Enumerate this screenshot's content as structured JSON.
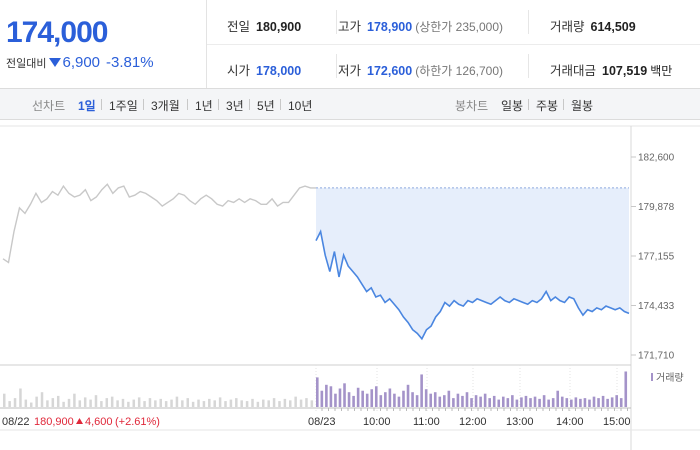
{
  "quote": {
    "price": "174,000",
    "change_label": "전일대비",
    "change": "6,900",
    "change_pct": "-3.81%",
    "stats": [
      {
        "label": "전일",
        "value": "180,900",
        "sub": ""
      },
      {
        "label": "고가",
        "value": "178,900",
        "sub": "(상한가 235,000)"
      },
      {
        "label": "거래량",
        "value": "614,509",
        "sub": ""
      },
      {
        "label": "시가",
        "value": "178,000",
        "sub": ""
      },
      {
        "label": "저가",
        "value": "172,600",
        "sub": "(하한가 126,700)"
      },
      {
        "label": "거래대금",
        "value": "107,519",
        "sub": "백만"
      }
    ]
  },
  "tabs": {
    "line_label": "선차트",
    "line": [
      "1일",
      "1주일",
      "3개월",
      "1년",
      "3년",
      "5년",
      "10년"
    ],
    "active": "1일",
    "candle_label": "봉차트",
    "candle": [
      "일봉",
      "주봉",
      "월봉"
    ]
  },
  "colors": {
    "accent": "#2b5fd9",
    "up": "#e0283a",
    "line_today": "#4a86e0",
    "fill_today": "#e6eefb",
    "line_prev": "#c8c8c8",
    "volume": "#a493c9"
  },
  "chart_data": {
    "type": "line",
    "ylim": [
      171710,
      182600
    ],
    "y_ticks": [
      "182,600",
      "179,878",
      "177,155",
      "174,433",
      "171,710"
    ],
    "y_tick_values": [
      182600,
      179878,
      177155,
      174433,
      171710
    ],
    "x_ticks": [
      "08/23",
      "10:00",
      "11:00",
      "12:00",
      "13:00",
      "14:00",
      "15:00"
    ],
    "prev_day": {
      "date": "08/22",
      "close": "180,900",
      "change": "4,600",
      "change_pct": "(+2.61%)",
      "values": [
        177000,
        176800,
        178500,
        179800,
        179500,
        180000,
        180600,
        180100,
        180300,
        180700,
        180500,
        181000,
        180600,
        180400,
        180500,
        180800,
        180200,
        180400,
        180800,
        181100,
        180600,
        180900,
        181000,
        180400,
        180500,
        180700,
        180600,
        180400,
        180200,
        179900,
        180100,
        180300,
        180600,
        180500,
        180200,
        180000,
        180300,
        180500,
        180300,
        180000,
        179900,
        180200,
        180100,
        180300,
        180100,
        180300,
        180200,
        180000,
        180000,
        180300,
        179900,
        180100,
        180100,
        180500,
        180900,
        181000,
        180900,
        180900
      ]
    },
    "today": {
      "reference": 180900,
      "values": [
        178000,
        178500,
        177200,
        176300,
        177400,
        176000,
        177200,
        176600,
        176300,
        176000,
        175600,
        175200,
        175400,
        174900,
        175000,
        174600,
        174800,
        174500,
        174200,
        173800,
        173500,
        173100,
        172900,
        172600,
        173100,
        173300,
        173800,
        174100,
        174600,
        174400,
        174700,
        174500,
        174400,
        174700,
        174600,
        174800,
        174700,
        174600,
        174500,
        174700,
        174900,
        174700,
        174600,
        174800,
        174700,
        174600,
        174500,
        174700,
        174600,
        174800,
        175200,
        174700,
        174900,
        174700,
        174600,
        174900,
        174800,
        174300,
        173900,
        174200,
        174100,
        174300,
        174200,
        174400,
        174300,
        174200,
        174300,
        174100,
        174000
      ]
    },
    "volume_label": "거래량",
    "prev_volume": [
      18,
      8,
      12,
      25,
      10,
      6,
      14,
      20,
      9,
      12,
      15,
      7,
      11,
      18,
      9,
      13,
      10,
      16,
      8,
      12,
      14,
      9,
      11,
      7,
      10,
      13,
      8,
      12,
      9,
      11,
      8,
      10,
      14,
      9,
      12,
      7,
      10,
      8,
      11,
      9,
      13,
      8,
      10,
      12,
      9,
      8,
      11,
      7,
      10,
      9,
      12,
      8,
      11,
      9,
      14,
      10,
      12,
      9
    ],
    "today_volume": [
      40,
      22,
      30,
      28,
      18,
      25,
      32,
      20,
      15,
      26,
      22,
      18,
      24,
      28,
      16,
      20,
      25,
      18,
      14,
      22,
      30,
      20,
      16,
      44,
      24,
      18,
      20,
      14,
      16,
      22,
      12,
      18,
      15,
      20,
      12,
      16,
      14,
      18,
      12,
      15,
      10,
      14,
      12,
      16,
      10,
      13,
      15,
      12,
      14,
      11,
      16,
      10,
      12,
      22,
      14,
      12,
      10,
      13,
      11,
      12,
      10,
      14,
      12,
      15,
      11,
      13,
      16,
      12,
      48
    ]
  }
}
